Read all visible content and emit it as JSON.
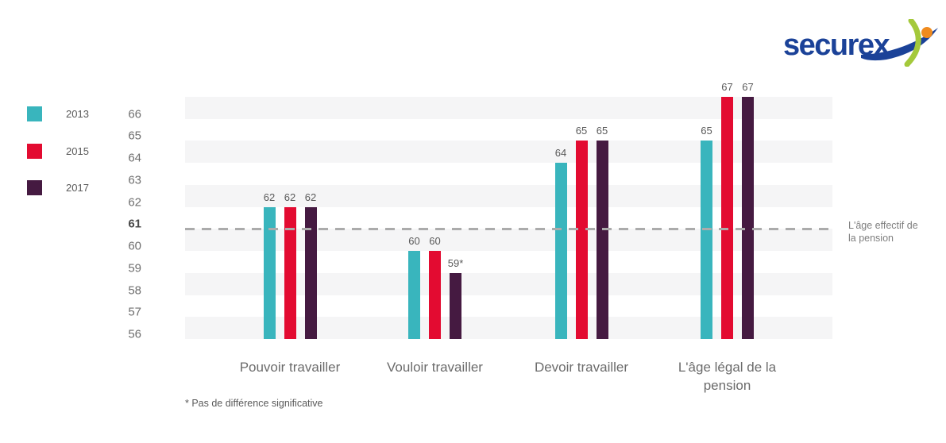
{
  "logo": {
    "text": "securex",
    "colors": {
      "blue": "#1b4298",
      "green": "#a4c93b",
      "orange": "#f08b1e"
    }
  },
  "chart_data": {
    "type": "bar",
    "title": "",
    "categories": [
      "Pouvoir travailler",
      "Vouloir travailler",
      "Devoir travailler",
      "L'âge légal de la pension"
    ],
    "series": [
      {
        "name": "2013",
        "color": "#39b5bd",
        "values": [
          62,
          60,
          64,
          65
        ],
        "labels": [
          "62",
          "60",
          "64",
          "65"
        ]
      },
      {
        "name": "2015",
        "color": "#e30b31",
        "values": [
          62,
          60,
          65,
          67
        ],
        "labels": [
          "62",
          "60",
          "65",
          "67"
        ]
      },
      {
        "name": "2017",
        "color": "#451a41",
        "values": [
          62,
          59,
          65,
          67
        ],
        "labels": [
          "62",
          "59*",
          "65",
          "67"
        ]
      }
    ],
    "ylim": [
      56,
      67
    ],
    "yticks": [
      66,
      65,
      64,
      63,
      62,
      61,
      60,
      59,
      58,
      57,
      56
    ],
    "bold_tick": 61,
    "reference_line": {
      "value": 61,
      "label": "L'âge effectif de la pension",
      "color": "#ababab",
      "style": "dashed"
    },
    "note": "* Pas de différence significative",
    "legend_position": "left",
    "grid": "striped-horizontal-bands",
    "band_color": "#f5f5f6"
  }
}
